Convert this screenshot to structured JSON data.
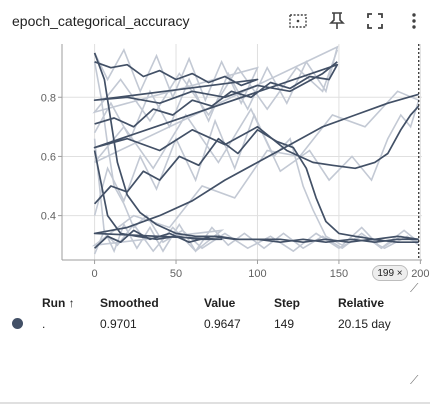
{
  "header": {
    "title": "epoch_categorical_accuracy"
  },
  "toolbar": [
    "data-selection-icon",
    "pin-icon",
    "fullscreen-icon",
    "more-vert-icon"
  ],
  "colors": {
    "run": "#425066",
    "raw": "#c3c9d4",
    "axis": "#9e9e9e",
    "grid": "#e0e0e0"
  },
  "chart_data": {
    "type": "line",
    "title": "epoch_categorical_accuracy",
    "xlabel": "",
    "ylabel": "",
    "xlim": [
      -20,
      201
    ],
    "ylim": [
      0.25,
      0.98
    ],
    "x_ticks": [
      "0",
      "50",
      "100",
      "150",
      "200"
    ],
    "y_ticks": [
      "0.4",
      "0.6",
      "0.8"
    ],
    "grid": true,
    "hover_step": 199,
    "hover_step_label": "199 ×",
    "series": [
      {
        "smoothed": [
          [
            0,
            0.29
          ],
          [
            8,
            0.33
          ],
          [
            16,
            0.31
          ],
          [
            24,
            0.35
          ],
          [
            34,
            0.32
          ],
          [
            46,
            0.34
          ],
          [
            58,
            0.31
          ],
          [
            72,
            0.33
          ],
          [
            86,
            0.32
          ],
          [
            100,
            0.32
          ],
          [
            114,
            0.31
          ],
          [
            128,
            0.32
          ],
          [
            142,
            0.31
          ],
          [
            158,
            0.32
          ],
          [
            172,
            0.31
          ],
          [
            186,
            0.32
          ],
          [
            199,
            0.32
          ]
        ],
        "raw": [
          [
            0,
            0.27
          ],
          [
            6,
            0.35
          ],
          [
            12,
            0.28
          ],
          [
            18,
            0.37
          ],
          [
            26,
            0.29
          ],
          [
            34,
            0.36
          ],
          [
            42,
            0.28
          ],
          [
            52,
            0.37
          ],
          [
            62,
            0.28
          ],
          [
            72,
            0.36
          ],
          [
            82,
            0.3
          ],
          [
            92,
            0.34
          ],
          [
            104,
            0.29
          ],
          [
            116,
            0.34
          ],
          [
            128,
            0.29
          ],
          [
            140,
            0.33
          ],
          [
            152,
            0.29
          ],
          [
            164,
            0.34
          ],
          [
            176,
            0.29
          ],
          [
            188,
            0.33
          ],
          [
            199,
            0.31
          ]
        ]
      },
      {
        "smoothed": [
          [
            0,
            0.44
          ],
          [
            10,
            0.5
          ],
          [
            20,
            0.48
          ],
          [
            30,
            0.55
          ],
          [
            40,
            0.52
          ],
          [
            52,
            0.6
          ],
          [
            64,
            0.57
          ],
          [
            76,
            0.66
          ],
          [
            88,
            0.61
          ],
          [
            100,
            0.69
          ],
          [
            112,
            0.65
          ],
          [
            122,
            0.63
          ],
          [
            130,
            0.56
          ],
          [
            136,
            0.46
          ],
          [
            142,
            0.38
          ],
          [
            150,
            0.34
          ],
          [
            160,
            0.33
          ],
          [
            172,
            0.32
          ],
          [
            186,
            0.33
          ],
          [
            199,
            0.32
          ]
        ],
        "raw": [
          [
            0,
            0.4
          ],
          [
            8,
            0.56
          ],
          [
            18,
            0.45
          ],
          [
            28,
            0.6
          ],
          [
            38,
            0.49
          ],
          [
            50,
            0.66
          ],
          [
            62,
            0.52
          ],
          [
            74,
            0.72
          ],
          [
            86,
            0.56
          ],
          [
            98,
            0.74
          ],
          [
            110,
            0.6
          ],
          [
            120,
            0.66
          ],
          [
            128,
            0.5
          ],
          [
            134,
            0.42
          ],
          [
            142,
            0.33
          ],
          [
            152,
            0.3
          ],
          [
            164,
            0.36
          ],
          [
            176,
            0.29
          ],
          [
            190,
            0.35
          ],
          [
            199,
            0.31
          ]
        ]
      },
      {
        "smoothed": [
          [
            0,
            0.71
          ],
          [
            12,
            0.73
          ],
          [
            24,
            0.7
          ],
          [
            36,
            0.76
          ],
          [
            48,
            0.74
          ],
          [
            60,
            0.79
          ],
          [
            72,
            0.77
          ],
          [
            84,
            0.82
          ],
          [
            96,
            0.8
          ],
          [
            108,
            0.85
          ],
          [
            120,
            0.83
          ],
          [
            132,
            0.87
          ],
          [
            144,
            0.86
          ],
          [
            149,
            0.91
          ],
          [
            0,
            0.63
          ],
          [
            20,
            0.66
          ],
          [
            40,
            0.62
          ],
          [
            60,
            0.69
          ],
          [
            80,
            0.64
          ],
          [
            100,
            0.7
          ],
          [
            118,
            0.62
          ],
          [
            134,
            0.58
          ],
          [
            146,
            0.57
          ],
          [
            160,
            0.56
          ],
          [
            172,
            0.58
          ],
          [
            180,
            0.61
          ],
          [
            188,
            0.69
          ],
          [
            194,
            0.74
          ],
          [
            199,
            0.77
          ]
        ],
        "raw": [
          [
            0,
            0.68
          ],
          [
            10,
            0.78
          ],
          [
            22,
            0.66
          ],
          [
            34,
            0.82
          ],
          [
            46,
            0.7
          ],
          [
            58,
            0.86
          ],
          [
            70,
            0.72
          ],
          [
            82,
            0.88
          ],
          [
            94,
            0.76
          ],
          [
            106,
            0.9
          ],
          [
            118,
            0.78
          ],
          [
            130,
            0.92
          ],
          [
            142,
            0.82
          ],
          [
            149,
            0.97
          ],
          [
            0,
            0.58
          ],
          [
            18,
            0.7
          ],
          [
            36,
            0.56
          ],
          [
            56,
            0.74
          ],
          [
            76,
            0.58
          ],
          [
            96,
            0.76
          ],
          [
            114,
            0.55
          ],
          [
            132,
            0.62
          ],
          [
            144,
            0.52
          ],
          [
            158,
            0.6
          ],
          [
            170,
            0.52
          ],
          [
            180,
            0.66
          ],
          [
            188,
            0.74
          ],
          [
            194,
            0.7
          ],
          [
            199,
            0.79
          ]
        ]
      },
      {
        "smoothed": [
          [
            0,
            0.95
          ],
          [
            6,
            0.86
          ],
          [
            10,
            0.72
          ],
          [
            14,
            0.58
          ],
          [
            20,
            0.47
          ],
          [
            28,
            0.41
          ],
          [
            38,
            0.37
          ],
          [
            50,
            0.34
          ],
          [
            62,
            0.33
          ],
          [
            76,
            0.33
          ],
          [
            88,
            0.32
          ],
          [
            100,
            0.32
          ],
          [
            114,
            0.32
          ],
          [
            128,
            0.31
          ],
          [
            142,
            0.32
          ],
          [
            156,
            0.31
          ],
          [
            170,
            0.32
          ],
          [
            186,
            0.31
          ],
          [
            199,
            0.31
          ]
        ],
        "raw": [
          [
            0,
            0.92
          ],
          [
            4,
            0.8
          ],
          [
            8,
            0.64
          ],
          [
            12,
            0.5
          ],
          [
            18,
            0.44
          ],
          [
            24,
            0.36
          ],
          [
            32,
            0.4
          ],
          [
            42,
            0.31
          ],
          [
            54,
            0.35
          ],
          [
            66,
            0.29
          ],
          [
            80,
            0.34
          ],
          [
            94,
            0.29
          ],
          [
            108,
            0.33
          ],
          [
            122,
            0.28
          ],
          [
            136,
            0.34
          ],
          [
            150,
            0.29
          ],
          [
            164,
            0.33
          ],
          [
            178,
            0.29
          ],
          [
            192,
            0.33
          ],
          [
            199,
            0.3
          ]
        ]
      },
      {
        "smoothed": [
          [
            0,
            0.92
          ],
          [
            10,
            0.9
          ],
          [
            20,
            0.91
          ],
          [
            30,
            0.87
          ],
          [
            40,
            0.89
          ],
          [
            50,
            0.86
          ],
          [
            60,
            0.88
          ],
          [
            70,
            0.85
          ],
          [
            80,
            0.87
          ],
          [
            90,
            0.84
          ],
          [
            100,
            0.86
          ],
          [
            0,
            0.79
          ],
          [
            20,
            0.8
          ],
          [
            40,
            0.78
          ],
          [
            60,
            0.82
          ],
          [
            80,
            0.8
          ],
          [
            100,
            0.84
          ],
          [
            120,
            0.82
          ],
          [
            140,
            0.88
          ],
          [
            149,
            0.92
          ]
        ],
        "raw": [
          [
            0,
            0.95
          ],
          [
            8,
            0.86
          ],
          [
            18,
            0.96
          ],
          [
            28,
            0.82
          ],
          [
            38,
            0.94
          ],
          [
            48,
            0.8
          ],
          [
            58,
            0.93
          ],
          [
            68,
            0.79
          ],
          [
            78,
            0.92
          ],
          [
            90,
            0.78
          ],
          [
            100,
            0.9
          ],
          [
            0,
            0.75
          ],
          [
            16,
            0.86
          ],
          [
            34,
            0.72
          ],
          [
            52,
            0.88
          ],
          [
            70,
            0.74
          ],
          [
            88,
            0.9
          ],
          [
            106,
            0.76
          ],
          [
            124,
            0.9
          ],
          [
            140,
            0.82
          ],
          [
            149,
            0.96
          ]
        ]
      },
      {
        "smoothed": [
          [
            0,
            0.62
          ],
          [
            8,
            0.4
          ],
          [
            16,
            0.34
          ],
          [
            26,
            0.33
          ],
          [
            38,
            0.32
          ],
          [
            50,
            0.33
          ],
          [
            64,
            0.32
          ],
          [
            78,
            0.32
          ],
          [
            0,
            0.34
          ],
          [
            20,
            0.36
          ],
          [
            40,
            0.4
          ],
          [
            60,
            0.45
          ],
          [
            80,
            0.52
          ],
          [
            100,
            0.58
          ],
          [
            120,
            0.64
          ],
          [
            140,
            0.7
          ],
          [
            160,
            0.74
          ],
          [
            180,
            0.78
          ],
          [
            199,
            0.81
          ]
        ],
        "raw": [
          [
            0,
            0.66
          ],
          [
            6,
            0.34
          ],
          [
            14,
            0.3
          ],
          [
            24,
            0.37
          ],
          [
            36,
            0.28
          ],
          [
            48,
            0.36
          ],
          [
            62,
            0.28
          ],
          [
            78,
            0.35
          ],
          [
            0,
            0.3
          ],
          [
            24,
            0.4
          ],
          [
            46,
            0.36
          ],
          [
            66,
            0.5
          ],
          [
            86,
            0.46
          ],
          [
            106,
            0.62
          ],
          [
            126,
            0.6
          ],
          [
            146,
            0.74
          ],
          [
            166,
            0.7
          ],
          [
            186,
            0.82
          ],
          [
            199,
            0.79
          ]
        ]
      }
    ]
  },
  "tooltip": {
    "headers": {
      "run": "Run ↑",
      "smoothed": "Smoothed",
      "value": "Value",
      "step": "Step",
      "relative": "Relative"
    },
    "rows": [
      {
        "run": ".",
        "smoothed": "0.9701",
        "value": "0.9647",
        "step": "149",
        "relative": "20.15 day"
      }
    ]
  }
}
